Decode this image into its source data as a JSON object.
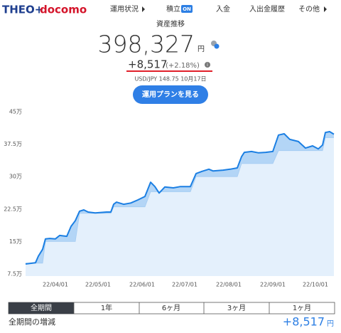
{
  "header": {
    "logo": "THEO+",
    "brand": "docomo",
    "nav": [
      "運用状況",
      "積立",
      "入金",
      "入出金履歴",
      "その他"
    ],
    "badge": "ON"
  },
  "summary": {
    "title": "資産推移",
    "amount": "398,327",
    "unit": "円",
    "change": "+8,517",
    "change_pct": "(+2.18%)",
    "fx": "USD/JPY 148.75 10月17日",
    "button": "運用プランを見る"
  },
  "chart_data": {
    "type": "area",
    "x": [
      "22/03/11",
      "22/03/18",
      "22/03/20",
      "22/03/23",
      "22/03/25",
      "22/03/28",
      "22/04/01",
      "22/04/04",
      "22/04/09",
      "22/04/12",
      "22/04/15",
      "22/04/18",
      "22/04/21",
      "22/04/24",
      "22/04/29",
      "22/05/07",
      "22/05/10",
      "22/05/12",
      "22/05/14",
      "22/05/19",
      "22/05/24",
      "22/05/29",
      "22/06/03",
      "22/06/07",
      "22/06/10",
      "22/06/13",
      "22/06/17",
      "22/06/23",
      "22/06/28",
      "22/07/05",
      "22/07/09",
      "22/07/13",
      "22/07/18",
      "22/07/21",
      "22/07/28",
      "22/08/02",
      "22/08/07",
      "22/08/10",
      "22/08/12",
      "22/08/17",
      "22/08/22",
      "22/08/27",
      "22/09/01",
      "22/09/05",
      "22/09/09",
      "22/09/13",
      "22/09/19",
      "22/09/24",
      "22/09/29",
      "22/10/03",
      "22/10/06",
      "22/10/08",
      "22/10/11",
      "22/10/14"
    ],
    "series": [
      {
        "color": "#1b7fe3",
        "fill": "#e4f0fc",
        "values": [
          9.8,
          10.1,
          11.6,
          13.2,
          15.6,
          15.7,
          15.6,
          16.4,
          16.2,
          18.5,
          19.8,
          22.0,
          22.3,
          21.8,
          21.6,
          21.8,
          21.8,
          23.6,
          24.1,
          23.6,
          23.9,
          24.6,
          25.4,
          28.7,
          27.7,
          26.2,
          27.6,
          27.4,
          27.7,
          27.7,
          30.7,
          31.2,
          31.7,
          31.3,
          31.5,
          31.7,
          32.0,
          34.6,
          35.6,
          35.8,
          35.5,
          35.6,
          35.8,
          39.6,
          39.9,
          38.6,
          38.1,
          36.6,
          37.1,
          36.4,
          37.3,
          40.2,
          40.4,
          39.8
        ]
      },
      {
        "color": "#a3cbf2",
        "fill": "#b3d5f6",
        "values": [
          10,
          10,
          10,
          10,
          15,
          15,
          15,
          15,
          15,
          15,
          15,
          21.5,
          21.5,
          21.5,
          21.5,
          21.5,
          21.5,
          23,
          23,
          23,
          23,
          23,
          23,
          26.5,
          26.5,
          26.5,
          26.5,
          26.5,
          26.5,
          26.5,
          30,
          30,
          30,
          30,
          30,
          30,
          30,
          33,
          33,
          33,
          33,
          33,
          33,
          36,
          36,
          36,
          36,
          36,
          36,
          36,
          36,
          39,
          39,
          39
        ]
      }
    ],
    "xlim": [
      "22/03/11",
      "22/10/14"
    ],
    "xticks": [
      "22/04/01",
      "22/05/01",
      "22/06/01",
      "22/07/01",
      "22/08/01",
      "22/09/01",
      "22/10/01"
    ],
    "ylim": [
      7,
      45
    ],
    "yticks": [
      {
        "value": 7.5,
        "label": "7.5万"
      },
      {
        "value": 15,
        "label": "15万"
      },
      {
        "value": 22.5,
        "label": "22.5万"
      },
      {
        "value": 30,
        "label": "30万"
      },
      {
        "value": 37.5,
        "label": "37.5万"
      },
      {
        "value": 45,
        "label": "45万"
      }
    ],
    "grid": false
  },
  "tabs": [
    "全期間",
    "1年",
    "6ヶ月",
    "3ヶ月",
    "1ヶ月"
  ],
  "footer": {
    "label": "全期間の増減",
    "change": "+8,517",
    "unit": "円"
  }
}
